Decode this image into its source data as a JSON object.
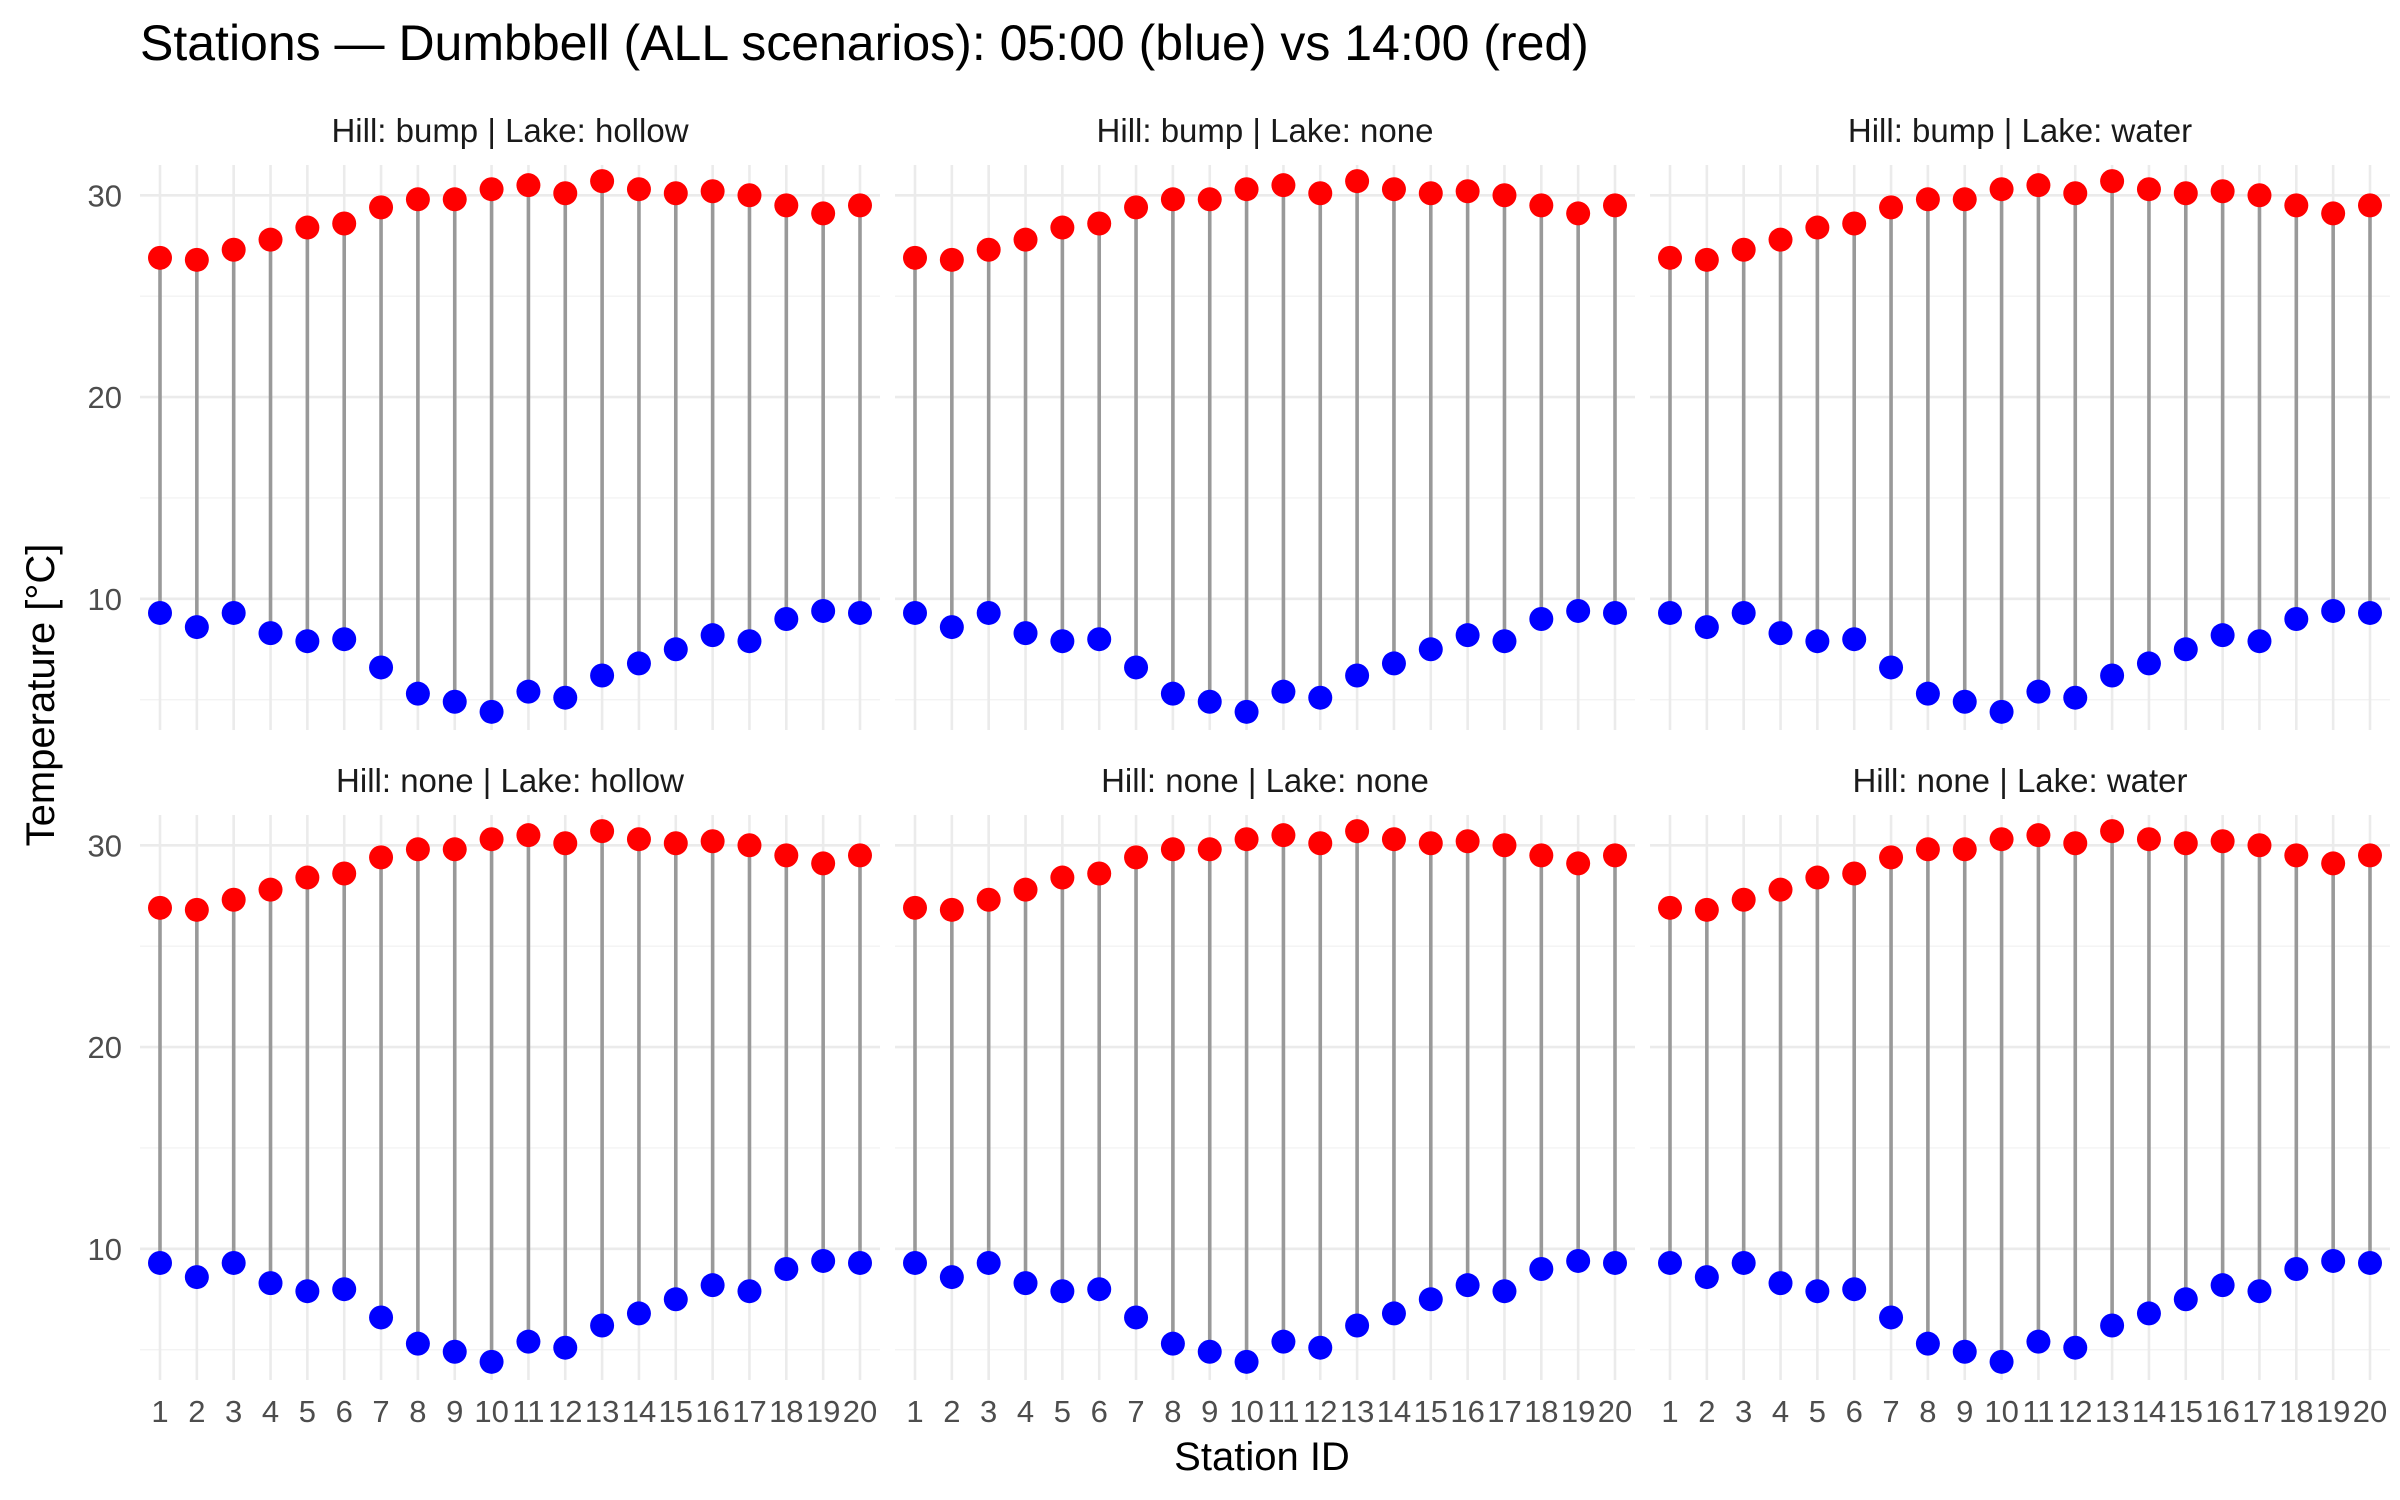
{
  "chart_data": {
    "type": "dumbbell",
    "title": "Stations — Dumbbell (ALL scenarios): 05:00 (blue) vs 14:00 (red)",
    "xlabel": "Station ID",
    "ylabel": "Temperature [°C]",
    "categories": [
      "1",
      "2",
      "3",
      "4",
      "5",
      "6",
      "7",
      "8",
      "9",
      "10",
      "11",
      "12",
      "13",
      "14",
      "15",
      "16",
      "17",
      "18",
      "19",
      "20"
    ],
    "yticks": [
      10,
      20,
      30
    ],
    "ylim": [
      3.5,
      31.5
    ],
    "grid": true,
    "layout": {
      "rows": 2,
      "cols": 3
    },
    "colors": {
      "morning": "#0000ff",
      "afternoon": "#ff0000",
      "segment": "#999999"
    },
    "panels": [
      {
        "label": "Hill: bump | Lake: hollow",
        "series": [
          {
            "values": [
              9.3,
              8.6,
              9.3,
              8.3,
              7.9,
              8.0,
              6.6,
              5.3,
              4.9,
              4.4,
              5.4,
              5.1,
              6.2,
              6.8,
              7.5,
              8.2,
              7.9,
              9.0,
              9.4,
              9.3
            ]
          },
          {
            "values": [
              26.9,
              26.8,
              27.3,
              27.8,
              28.4,
              28.6,
              29.4,
              29.8,
              29.8,
              30.3,
              30.5,
              30.1,
              30.7,
              30.3,
              30.1,
              30.2,
              30.0,
              29.5,
              29.1,
              29.5
            ]
          }
        ]
      },
      {
        "label": "Hill: bump | Lake: none",
        "series": [
          {
            "values": [
              9.3,
              8.6,
              9.3,
              8.3,
              7.9,
              8.0,
              6.6,
              5.3,
              4.9,
              4.4,
              5.4,
              5.1,
              6.2,
              6.8,
              7.5,
              8.2,
              7.9,
              9.0,
              9.4,
              9.3
            ]
          },
          {
            "values": [
              26.9,
              26.8,
              27.3,
              27.8,
              28.4,
              28.6,
              29.4,
              29.8,
              29.8,
              30.3,
              30.5,
              30.1,
              30.7,
              30.3,
              30.1,
              30.2,
              30.0,
              29.5,
              29.1,
              29.5
            ]
          }
        ]
      },
      {
        "label": "Hill: bump | Lake: water",
        "series": [
          {
            "values": [
              9.3,
              8.6,
              9.3,
              8.3,
              7.9,
              8.0,
              6.6,
              5.3,
              4.9,
              4.4,
              5.4,
              5.1,
              6.2,
              6.8,
              7.5,
              8.2,
              7.9,
              9.0,
              9.4,
              9.3
            ]
          },
          {
            "values": [
              26.9,
              26.8,
              27.3,
              27.8,
              28.4,
              28.6,
              29.4,
              29.8,
              29.8,
              30.3,
              30.5,
              30.1,
              30.7,
              30.3,
              30.1,
              30.2,
              30.0,
              29.5,
              29.1,
              29.5
            ]
          }
        ]
      },
      {
        "label": "Hill: none | Lake: hollow",
        "series": [
          {
            "values": [
              9.3,
              8.6,
              9.3,
              8.3,
              7.9,
              8.0,
              6.6,
              5.3,
              4.9,
              4.4,
              5.4,
              5.1,
              6.2,
              6.8,
              7.5,
              8.2,
              7.9,
              9.0,
              9.4,
              9.3
            ]
          },
          {
            "values": [
              26.9,
              26.8,
              27.3,
              27.8,
              28.4,
              28.6,
              29.4,
              29.8,
              29.8,
              30.3,
              30.5,
              30.1,
              30.7,
              30.3,
              30.1,
              30.2,
              30.0,
              29.5,
              29.1,
              29.5
            ]
          }
        ]
      },
      {
        "label": "Hill: none | Lake: none",
        "series": [
          {
            "values": [
              9.3,
              8.6,
              9.3,
              8.3,
              7.9,
              8.0,
              6.6,
              5.3,
              4.9,
              4.4,
              5.4,
              5.1,
              6.2,
              6.8,
              7.5,
              8.2,
              7.9,
              9.0,
              9.4,
              9.3
            ]
          },
          {
            "values": [
              26.9,
              26.8,
              27.3,
              27.8,
              28.4,
              28.6,
              29.4,
              29.8,
              29.8,
              30.3,
              30.5,
              30.1,
              30.7,
              30.3,
              30.1,
              30.2,
              30.0,
              29.5,
              29.1,
              29.5
            ]
          }
        ]
      },
      {
        "label": "Hill: none | Lake: water",
        "series": [
          {
            "values": [
              9.3,
              8.6,
              9.3,
              8.3,
              7.9,
              8.0,
              6.6,
              5.3,
              4.9,
              4.4,
              5.4,
              5.1,
              6.2,
              6.8,
              7.5,
              8.2,
              7.9,
              9.0,
              9.4,
              9.3
            ]
          },
          {
            "values": [
              26.9,
              26.8,
              27.3,
              27.8,
              28.4,
              28.6,
              29.4,
              29.8,
              29.8,
              30.3,
              30.5,
              30.1,
              30.7,
              30.3,
              30.1,
              30.2,
              30.0,
              29.5,
              29.1,
              29.5
            ]
          }
        ]
      }
    ]
  }
}
